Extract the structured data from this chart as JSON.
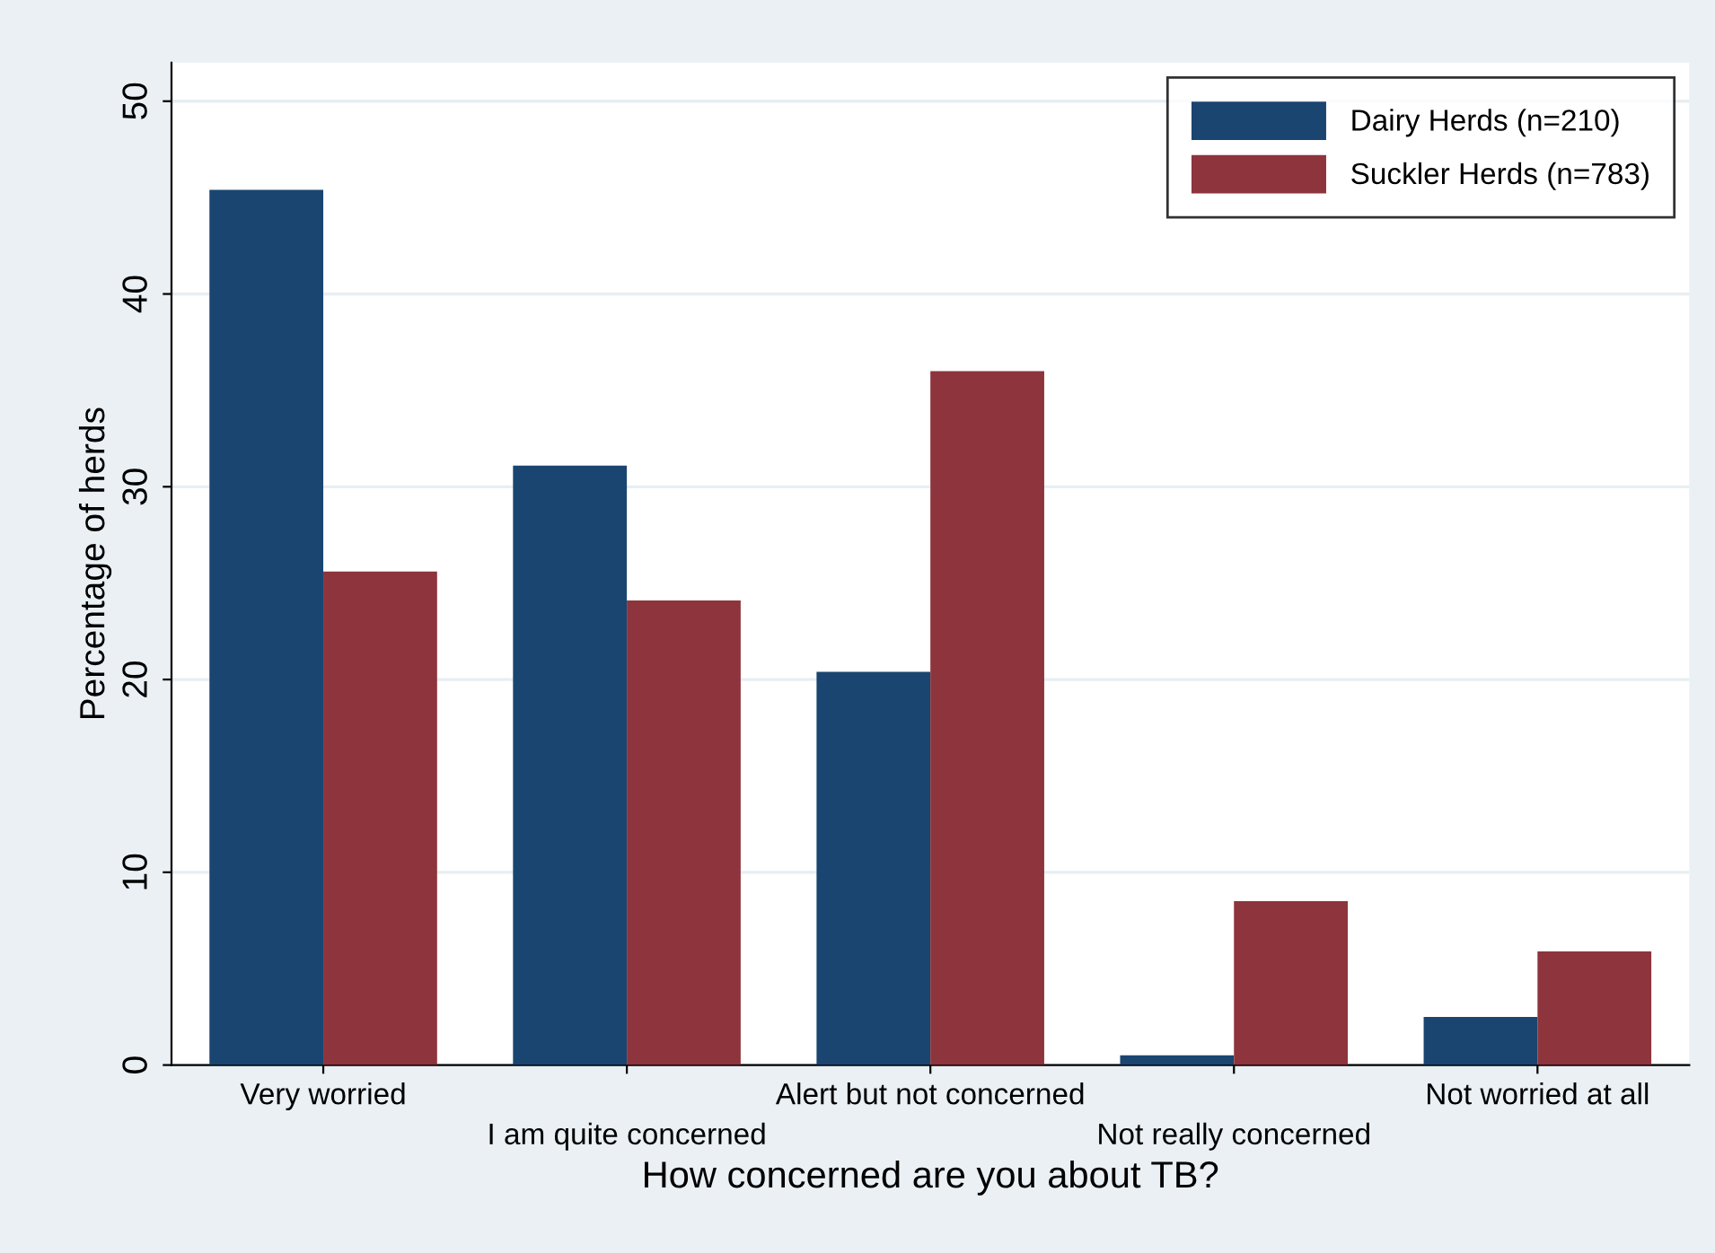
{
  "chart_data": {
    "type": "bar",
    "xlabel": "How concerned are you about TB?",
    "ylabel": "Percentage of herds",
    "categories": [
      "Very worried",
      "I am quite concerned",
      "Alert but not concerned",
      "Not really concerned",
      "Not worried at all"
    ],
    "series": [
      {
        "name": "Dairy Herds (n=210)",
        "color": "#1a4570",
        "values": [
          45.4,
          31.1,
          20.4,
          0.5,
          2.5
        ]
      },
      {
        "name": "Suckler Herds (n=783)",
        "color": "#8e343c",
        "values": [
          25.6,
          24.1,
          36.0,
          8.5,
          5.9
        ]
      }
    ],
    "ylim": [
      0,
      52
    ],
    "yticks": [
      0,
      10,
      20,
      30,
      40,
      50
    ],
    "grid": "y",
    "legend": "top right"
  }
}
